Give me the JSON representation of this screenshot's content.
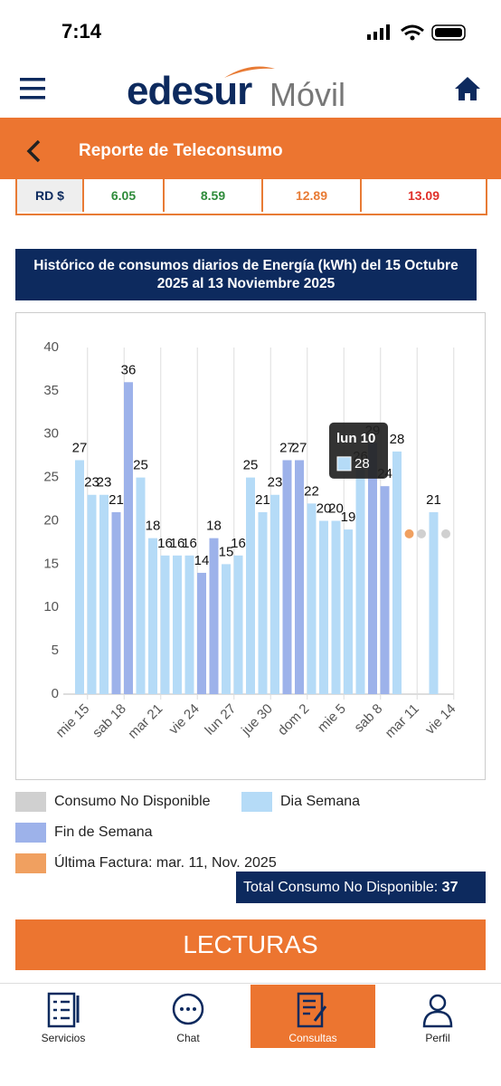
{
  "status_bar": {
    "time": "7:14"
  },
  "header": {
    "brand": "edesur",
    "brand_suffix": "Móvil"
  },
  "nav": {
    "title": "Reporte de Teleconsumo"
  },
  "tariff_row": {
    "label": "RD $",
    "values": [
      "6.05",
      "8.59",
      "12.89",
      "13.09"
    ]
  },
  "chart_data": {
    "type": "bar",
    "title": "Histórico de consumos diarios de Energía (kWh) del 15 Octubre 2025 al 13 Noviembre 2025",
    "categories": [
      "mie 15",
      null,
      null,
      "sab 18",
      null,
      null,
      "mar 21",
      null,
      null,
      "vie 24",
      null,
      null,
      "lun 27",
      null,
      null,
      "jue 30",
      null,
      null,
      "dom 2",
      null,
      null,
      "mie 5",
      null,
      null,
      "sab 8",
      null,
      null,
      "mar 11",
      null,
      null,
      "vie 14"
    ],
    "series": [
      {
        "name": "Consumo No Disponible",
        "type": "scatter",
        "color": "#d0d0d0",
        "values": [
          null,
          null,
          null,
          null,
          null,
          null,
          null,
          null,
          null,
          null,
          null,
          null,
          null,
          null,
          null,
          null,
          null,
          null,
          null,
          null,
          null,
          null,
          null,
          null,
          null,
          null,
          null,
          null,
          18.5,
          null,
          18.5
        ]
      },
      {
        "name": "Dia Semana",
        "type": "bar",
        "color": "#b5dbf7",
        "values": [
          27,
          23,
          23,
          null,
          null,
          25,
          18,
          16,
          16,
          16,
          null,
          null,
          15,
          16,
          25,
          21,
          23,
          null,
          null,
          22,
          20,
          20,
          19,
          26,
          null,
          null,
          28,
          null,
          null,
          21,
          null
        ]
      },
      {
        "name": "Fin de Semana",
        "type": "bar",
        "color": "#9db2ea",
        "values": [
          null,
          null,
          null,
          21,
          36,
          null,
          null,
          null,
          null,
          null,
          14,
          18,
          null,
          null,
          null,
          null,
          null,
          27,
          27,
          null,
          null,
          null,
          null,
          null,
          29,
          24,
          null,
          null,
          null,
          null,
          null
        ]
      },
      {
        "name": "Última Factura: mar. 11, Nov. 2025",
        "type": "scatter",
        "color": "#f0a060",
        "values": [
          null,
          null,
          null,
          null,
          null,
          null,
          null,
          null,
          null,
          null,
          null,
          null,
          null,
          null,
          null,
          null,
          null,
          null,
          null,
          null,
          null,
          null,
          null,
          null,
          null,
          null,
          null,
          18.5,
          null,
          null,
          null
        ]
      }
    ],
    "ylim": [
      0,
      40
    ],
    "yticks": [
      0,
      5,
      10,
      15,
      20,
      25,
      30,
      35,
      40
    ],
    "grid": "x",
    "tooltip": {
      "title": "lun 10",
      "value": 28
    }
  },
  "total": {
    "label": "Total Consumo No Disponible:",
    "value": 37
  },
  "button": "LECTURAS",
  "tabs": [
    "Servicios",
    "Chat",
    "Consultas",
    "Perfil"
  ]
}
